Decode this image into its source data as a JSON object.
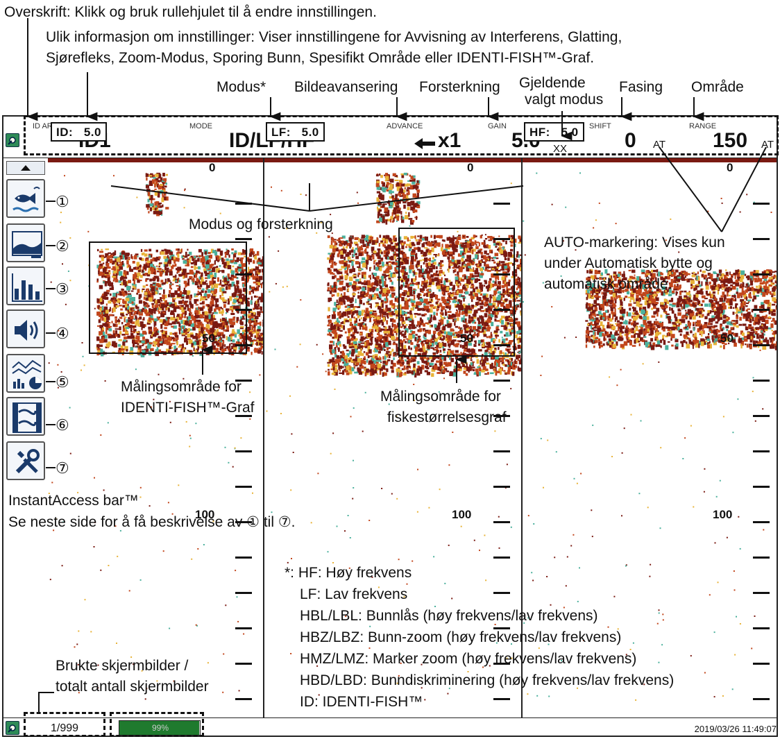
{
  "annotations": {
    "heading_line": "Overskrift: Klikk og bruk rullehjulet til å endre innstillingen.",
    "info_line1": "Ulik informasjon om innstillinger: Viser innstillingene for Avvisning av Interferens, Glatting,",
    "info_line2": "Sjørefleks, Zoom-Modus, Sporing Bunn, Spesifikt Område eller IDENTI-FISH™-Graf.",
    "mode_callout": "Modus*",
    "advance_callout": "Bildeavansering",
    "gain_callout": "Forsterkning",
    "current_mode_callout_1": "Gjeldende",
    "current_mode_callout_2": "valgt modus",
    "shift_callout": "Fasing",
    "range_callout": "Område",
    "mode_gain_callout": "Modus og forsterkning",
    "auto_mark_1": "AUTO-markering: Vises kun",
    "auto_mark_2": "under Automatisk bytte og",
    "auto_mark_3": "automatisk område.",
    "identi_area_1": "Målingsområde for",
    "identi_area_2": "IDENTI-FISH™-Graf",
    "fish_size_area_1": "Målingsområde for",
    "fish_size_area_2": "fiskestørrelsesgraf",
    "iab_label": "InstantAccess bar™",
    "iab_note": "Se neste side for å få beskrivelse av ① til ⑦.",
    "screens_callout_1": "Brukte skjermbilder /",
    "screens_callout_2": "totalt antall skjermbilder",
    "footnote_lines": [
      "*: HF: Høy frekvens",
      "LF: Lav frekvens",
      "HBL/LBL: Bunnlås (høy frekvens/lav frekvens)",
      "HBZ/LBZ: Bunn-zoom (høy frekvens/lav frekvens)",
      "HMZ/LMZ: Marker zoom (høy frekvens/lav frekvens)",
      "HBD/LBD: Bunndiskriminering (høy frekvens/lav frekvens)",
      "ID: IDENTI-FISH™"
    ],
    "numbers": [
      "①",
      "②",
      "③",
      "④",
      "⑤",
      "⑥",
      "⑦"
    ]
  },
  "header": {
    "id_area_label": "ID AREA",
    "id_area_value": "ID1",
    "mode_label": "MODE",
    "mode_value": "ID/LF/HF",
    "advance_label": "ADVANCE",
    "advance_value": "x1",
    "gain_label": "GAIN",
    "gain_value": "5.0",
    "current_mode_value": "XX",
    "shift_label": "SHIFT",
    "shift_value": "0",
    "shift_auto": "AT",
    "range_label": "RANGE",
    "range_value": "150",
    "range_auto": "AT"
  },
  "panels": [
    {
      "tag_mode": "ID:",
      "tag_gain": "5.0"
    },
    {
      "tag_mode": "LF:",
      "tag_gain": "5.0"
    },
    {
      "tag_mode": "HF:",
      "tag_gain": "5.0"
    }
  ],
  "depth_labels": {
    "top": "0",
    "mid": "50",
    "deep": "100"
  },
  "footer": {
    "screens": "1/999",
    "progress_text": "99%",
    "progress": 0.99,
    "timestamp": "2019/03/26 11:49:07"
  },
  "colors": {
    "echo_strong": "#7a1a12",
    "echo_mid": "#c2461c",
    "echo_weak": "#e8b339",
    "echo_faint": "#4bb09c",
    "progress_fill": "#1f7a2e"
  }
}
